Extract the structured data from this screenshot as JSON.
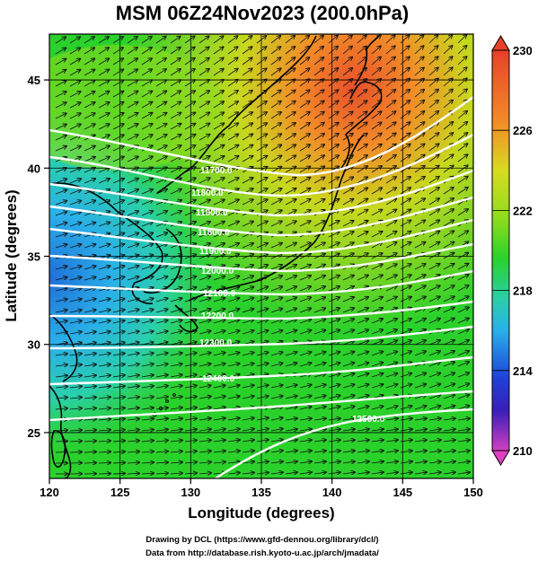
{
  "title": "MSM 06Z24Nov2023 (200.0hPa)",
  "xaxis": {
    "label": "Longitude (degrees)",
    "ticks": [
      "120",
      "125",
      "130",
      "135",
      "140",
      "145",
      "150"
    ],
    "range": [
      120,
      150
    ]
  },
  "yaxis": {
    "label": "Latitude  (degrees)",
    "ticks": [
      "25",
      "30",
      "35",
      "40",
      "45"
    ],
    "range": [
      22.4,
      47.6
    ]
  },
  "colorbar": {
    "ticks": [
      "230",
      "226",
      "222",
      "218",
      "214",
      "210"
    ],
    "range": [
      210,
      230
    ],
    "extend": "both"
  },
  "contour_labels": [
    "11700.0",
    "11800.0",
    "11900.0",
    "11800.0",
    "11900.0",
    "12000.0",
    "12100.0",
    "12200.0",
    "12300.0",
    "12400.0",
    "12500.0"
  ],
  "credits": {
    "line1": "Drawing by DCL (https://www.gfd-dennou.org/library/dcl/)",
    "line2": "Data from http://database.rish.kyoto-u.ac.jp/arch/jmadata/"
  },
  "colors": {
    "cold": "#1e6fd9",
    "cyan": "#2ad0c8",
    "green": "#2bd12b",
    "yellow": "#c8d81e",
    "orange": "#f28c28",
    "red": "#e8502a",
    "magenta": "#e040c0"
  },
  "chart_data": {
    "type": "map",
    "field": "temperature shading with wind vectors and height contours (200.0hPa)",
    "contours": [
      {
        "value": 11700.0
      },
      {
        "value": 11800.0
      },
      {
        "value": 11900.0
      },
      {
        "value": 12000.0
      },
      {
        "value": 12100.0
      },
      {
        "value": 12200.0
      },
      {
        "value": 12300.0
      },
      {
        "value": 12400.0
      },
      {
        "value": 12500.0
      }
    ]
  }
}
